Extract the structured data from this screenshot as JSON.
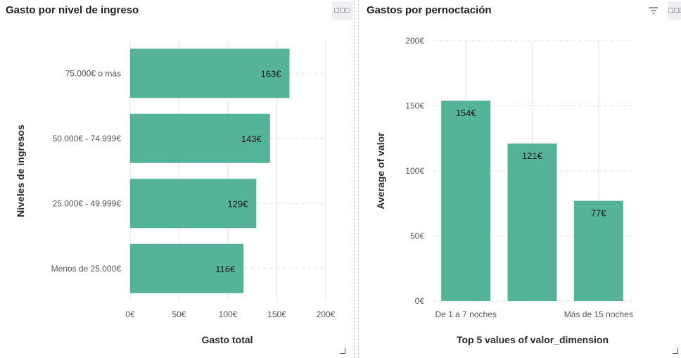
{
  "left_panel": {
    "title": "Gasto por nivel de ingreso",
    "menu_icon": "more-horizontal-icon"
  },
  "right_panel": {
    "title": "Gastos por pernoctación",
    "menu_icon": "more-horizontal-icon",
    "filter_icon": "filter-icon"
  },
  "bar_color": "#55b399",
  "chart_data": [
    {
      "type": "bar",
      "orientation": "horizontal",
      "categories": [
        "75.000€ o más",
        "50.000€ - 74.999€",
        "25.000€ - 49.999€",
        "Menos de 25.000€"
      ],
      "values": [
        163,
        143,
        129,
        116
      ],
      "data_labels": [
        "163€",
        "143€",
        "129€",
        "116€"
      ],
      "xlabel": "Gasto total",
      "ylabel": "Niveles de ingresos",
      "xlim": [
        0,
        200
      ],
      "ticks": [
        "0€",
        "50€",
        "100€",
        "150€",
        "200€"
      ],
      "grid": true
    },
    {
      "type": "bar",
      "orientation": "vertical",
      "categories": [
        "De 1 a 7 noches",
        "",
        "Más de 15 noches"
      ],
      "values": [
        154,
        121,
        77
      ],
      "data_labels": [
        "154€",
        "121€",
        "77€"
      ],
      "xlabel": "Top 5 values of valor_dimension",
      "ylabel": "Average of valor",
      "ylim": [
        0,
        200
      ],
      "ticks": [
        "0€",
        "50€",
        "100€",
        "150€",
        "200€"
      ],
      "grid": true
    }
  ]
}
